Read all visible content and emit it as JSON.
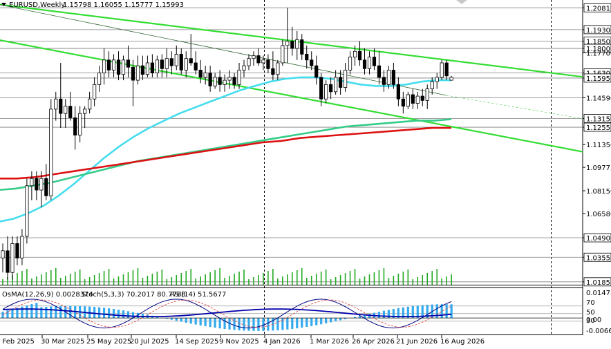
{
  "header": {
    "symbol": "EURUSD,Weekly",
    "quote": "1.15798 1.16055 1.15777 1.15993"
  },
  "indicator_header": {
    "osma": "OsMA(12,26,9) 0.0028374",
    "stoch": "Stoch(5,3,3) 70.2017 80.7788",
    "rsi": "RSI(14) 51.5677"
  },
  "colors": {
    "bull_candle": "#ffffff",
    "bear_candle": "#000000",
    "channel": "#33dd33",
    "ema_fast": "#44ddee",
    "ema_mid": "#33cc88",
    "ema_slow": "#dd1111",
    "volume": "#22aa22",
    "osma_hist": "#33aaee",
    "stoch_main": "#000080",
    "stoch_signal": "#dd3333",
    "rsi": "#0000aa"
  },
  "chart_data": {
    "type": "candlestick",
    "y_ticks": [
      "1.20810",
      "1.19300",
      "1.18500",
      "1.18000",
      "1.17700",
      "1.16300",
      "1.15950",
      "1.14590",
      "1.13150",
      "1.12550",
      "1.11350",
      "1.09775",
      "1.08150",
      "1.06580",
      "1.04900",
      "1.03550",
      "1.01850"
    ],
    "ylim": [
      1.0165,
      1.2135
    ],
    "x_ticks": [
      "2 Feb 2025",
      "30 Mar 2025",
      "25 May 2025",
      "20 Jul 2025",
      "14 Sep 2025",
      "9 Nov 2025",
      "4 Jan 2026",
      "1 Mar 2026",
      "26 Apr 2026",
      "21 Jun 2026",
      "16 Aug 2026"
    ],
    "indicator_ticks": [
      "0.014755",
      "70",
      "50",
      "30",
      "0.00",
      "-0.006675"
    ],
    "horizontal_levels": [
      1.2081,
      1.193,
      1.185,
      1.18,
      1.163,
      1.1595,
      1.1459,
      1.1315,
      1.1255,
      1.049,
      1.0355,
      1.0185
    ],
    "candles_ohlc": [
      [
        1.035,
        1.045,
        1.025,
        1.04
      ],
      [
        1.04,
        1.05,
        1.02,
        1.025
      ],
      [
        1.025,
        1.05,
        1.02,
        1.045
      ],
      [
        1.045,
        1.05,
        1.03,
        1.035
      ],
      [
        1.035,
        1.055,
        1.03,
        1.05
      ],
      [
        1.05,
        1.09,
        1.045,
        1.085
      ],
      [
        1.085,
        1.095,
        1.075,
        1.09
      ],
      [
        1.09,
        1.095,
        1.075,
        1.082
      ],
      [
        1.082,
        1.095,
        1.07,
        1.09
      ],
      [
        1.09,
        1.1,
        1.075,
        1.078
      ],
      [
        1.078,
        1.145,
        1.075,
        1.138
      ],
      [
        1.138,
        1.15,
        1.13,
        1.145
      ],
      [
        1.145,
        1.17,
        1.125,
        1.135
      ],
      [
        1.135,
        1.145,
        1.125,
        1.14
      ],
      [
        1.14,
        1.15,
        1.13,
        1.132
      ],
      [
        1.132,
        1.14,
        1.11,
        1.12
      ],
      [
        1.12,
        1.14,
        1.115,
        1.135
      ],
      [
        1.135,
        1.14,
        1.125,
        1.138
      ],
      [
        1.138,
        1.15,
        1.135,
        1.145
      ],
      [
        1.145,
        1.16,
        1.14,
        1.155
      ],
      [
        1.155,
        1.168,
        1.15,
        1.163
      ],
      [
        1.163,
        1.18,
        1.155,
        1.172
      ],
      [
        1.172,
        1.178,
        1.16,
        1.165
      ],
      [
        1.165,
        1.176,
        1.16,
        1.172
      ],
      [
        1.172,
        1.178,
        1.158,
        1.162
      ],
      [
        1.162,
        1.175,
        1.158,
        1.172
      ],
      [
        1.172,
        1.182,
        1.16,
        1.167
      ],
      [
        1.167,
        1.172,
        1.14,
        1.158
      ],
      [
        1.158,
        1.175,
        1.155,
        1.168
      ],
      [
        1.168,
        1.175,
        1.158,
        1.162
      ],
      [
        1.162,
        1.175,
        1.16,
        1.17
      ],
      [
        1.17,
        1.176,
        1.16,
        1.163
      ],
      [
        1.163,
        1.175,
        1.16,
        1.172
      ],
      [
        1.172,
        1.176,
        1.16,
        1.166
      ],
      [
        1.166,
        1.18,
        1.16,
        1.173
      ],
      [
        1.173,
        1.178,
        1.162,
        1.168
      ],
      [
        1.168,
        1.182,
        1.165,
        1.176
      ],
      [
        1.176,
        1.18,
        1.162,
        1.165
      ],
      [
        1.165,
        1.178,
        1.16,
        1.173
      ],
      [
        1.173,
        1.19,
        1.168,
        1.17
      ],
      [
        1.17,
        1.178,
        1.162,
        1.165
      ],
      [
        1.165,
        1.172,
        1.156,
        1.16
      ],
      [
        1.16,
        1.168,
        1.155,
        1.163
      ],
      [
        1.163,
        1.168,
        1.15,
        1.154
      ],
      [
        1.154,
        1.163,
        1.152,
        1.16
      ],
      [
        1.16,
        1.165,
        1.15,
        1.155
      ],
      [
        1.155,
        1.162,
        1.15,
        1.158
      ],
      [
        1.158,
        1.165,
        1.152,
        1.16
      ],
      [
        1.16,
        1.163,
        1.152,
        1.155
      ],
      [
        1.155,
        1.17,
        1.152,
        1.165
      ],
      [
        1.165,
        1.172,
        1.16,
        1.168
      ],
      [
        1.168,
        1.176,
        1.165,
        1.173
      ],
      [
        1.173,
        1.178,
        1.168,
        1.175
      ],
      [
        1.175,
        1.18,
        1.168,
        1.17
      ],
      [
        1.17,
        1.175,
        1.165,
        1.172
      ],
      [
        1.172,
        1.176,
        1.163,
        1.166
      ],
      [
        1.166,
        1.178,
        1.158,
        1.162
      ],
      [
        1.162,
        1.172,
        1.158,
        1.17
      ],
      [
        1.17,
        1.186,
        1.168,
        1.182
      ],
      [
        1.182,
        1.208,
        1.17,
        1.185
      ],
      [
        1.185,
        1.195,
        1.175,
        1.18
      ],
      [
        1.18,
        1.192,
        1.172,
        1.186
      ],
      [
        1.186,
        1.19,
        1.172,
        1.176
      ],
      [
        1.176,
        1.182,
        1.166,
        1.172
      ],
      [
        1.172,
        1.178,
        1.165,
        1.168
      ],
      [
        1.168,
        1.175,
        1.155,
        1.16
      ],
      [
        1.16,
        1.163,
        1.14,
        1.145
      ],
      [
        1.145,
        1.158,
        1.142,
        1.155
      ],
      [
        1.155,
        1.16,
        1.145,
        1.15
      ],
      [
        1.15,
        1.165,
        1.148,
        1.16
      ],
      [
        1.16,
        1.165,
        1.148,
        1.153
      ],
      [
        1.153,
        1.17,
        1.15,
        1.165
      ],
      [
        1.165,
        1.178,
        1.162,
        1.174
      ],
      [
        1.174,
        1.182,
        1.168,
        1.178
      ],
      [
        1.178,
        1.185,
        1.168,
        1.172
      ],
      [
        1.172,
        1.18,
        1.162,
        1.166
      ],
      [
        1.166,
        1.178,
        1.162,
        1.174
      ],
      [
        1.174,
        1.18,
        1.165,
        1.168
      ],
      [
        1.168,
        1.178,
        1.155,
        1.16
      ],
      [
        1.16,
        1.165,
        1.15,
        1.155
      ],
      [
        1.155,
        1.168,
        1.152,
        1.165
      ],
      [
        1.165,
        1.17,
        1.152,
        1.155
      ],
      [
        1.155,
        1.16,
        1.14,
        1.145
      ],
      [
        1.145,
        1.15,
        1.135,
        1.14
      ],
      [
        1.14,
        1.15,
        1.138,
        1.148
      ],
      [
        1.148,
        1.152,
        1.138,
        1.142
      ],
      [
        1.142,
        1.15,
        1.138,
        1.147
      ],
      [
        1.147,
        1.152,
        1.14,
        1.144
      ],
      [
        1.144,
        1.155,
        1.138,
        1.152
      ],
      [
        1.152,
        1.16,
        1.148,
        1.157
      ],
      [
        1.157,
        1.163,
        1.152,
        1.16
      ],
      [
        1.16,
        1.172,
        1.158,
        1.17
      ],
      [
        1.17,
        1.172,
        1.158,
        1.161
      ],
      [
        1.158,
        1.161,
        1.158,
        1.16
      ]
    ],
    "series": [
      {
        "values": [
          1.06,
          1.062,
          1.066,
          1.071,
          1.078,
          1.086,
          1.095,
          1.104,
          1.112,
          1.119,
          1.125,
          1.13,
          1.135,
          1.139,
          1.143,
          1.147,
          1.151,
          1.154,
          1.157,
          1.159,
          1.16,
          1.16,
          1.159,
          1.157,
          1.155,
          1.154,
          1.154,
          1.155,
          1.157,
          1.158,
          1.158
        ]
      },
      {
        "values": [
          1.082,
          1.083,
          1.085,
          1.087,
          1.09,
          1.093,
          1.096,
          1.099,
          1.102,
          1.104,
          1.106,
          1.108,
          1.11,
          1.112,
          1.114,
          1.116,
          1.118,
          1.12,
          1.122,
          1.124,
          1.126,
          1.127,
          1.128,
          1.129,
          1.13,
          1.13,
          1.131
        ]
      },
      {
        "values": [
          1.09,
          1.09,
          1.091,
          1.093,
          1.095,
          1.097,
          1.099,
          1.101,
          1.103,
          1.105,
          1.107,
          1.109,
          1.111,
          1.113,
          1.115,
          1.116,
          1.118,
          1.119,
          1.12,
          1.121,
          1.122,
          1.123,
          1.124,
          1.125,
          1.125
        ]
      }
    ]
  }
}
